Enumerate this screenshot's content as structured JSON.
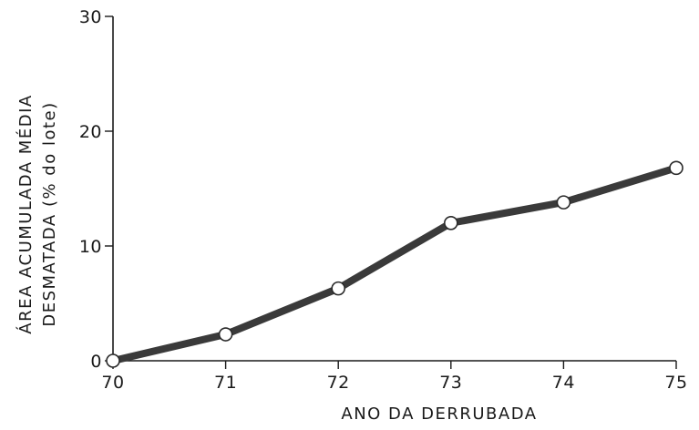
{
  "chart_data": {
    "type": "line",
    "title": "",
    "xlabel": "ANO DA DERRUBADA",
    "ylabel_line1": "ÁREA ACUMULADA MÉDIA",
    "ylabel_line2": "DESMATADA (% do lote)",
    "x": [
      70,
      71,
      72,
      73,
      74,
      75
    ],
    "series": [
      {
        "values": [
          0,
          2.3,
          6.3,
          12.0,
          13.8,
          16.8
        ]
      }
    ],
    "xlim": [
      70,
      75
    ],
    "ylim": [
      0,
      30
    ],
    "x_ticks": [
      "70",
      "71",
      "72",
      "73",
      "74",
      "75"
    ],
    "y_ticks": [
      "0",
      "10",
      "20",
      "30"
    ],
    "grid": false,
    "colors": {
      "line": "#3a3a3a",
      "axis": "#1a1a1a",
      "marker_fill": "#ffffff"
    }
  }
}
